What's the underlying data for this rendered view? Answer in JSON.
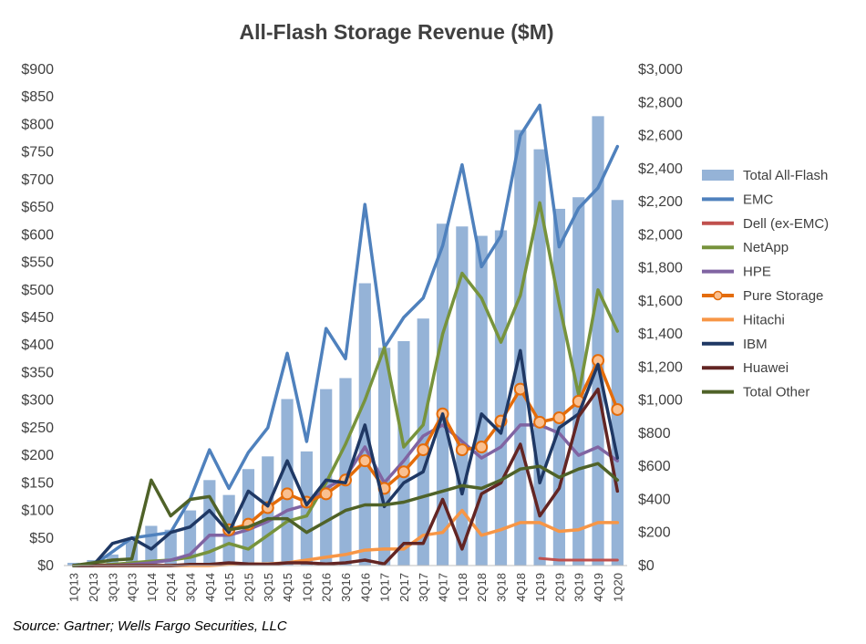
{
  "chart_data": {
    "type": "bar+line",
    "title": "All-Flash Storage Revenue ($M)",
    "source": "Source: Gartner; Wells Fargo Securities, LLC",
    "categories": [
      "1Q13",
      "2Q13",
      "3Q13",
      "4Q13",
      "1Q14",
      "2Q14",
      "3Q14",
      "4Q14",
      "1Q15",
      "2Q15",
      "3Q15",
      "4Q15",
      "1Q16",
      "2Q16",
      "3Q16",
      "4Q16",
      "1Q17",
      "2Q17",
      "3Q17",
      "4Q17",
      "1Q18",
      "2Q18",
      "3Q18",
      "4Q18",
      "1Q19",
      "2Q19",
      "3Q19",
      "4Q19",
      "1Q20"
    ],
    "y_left": {
      "min": 0,
      "max": 900,
      "step": 50,
      "prefix": "$"
    },
    "y_right": {
      "min": 0,
      "max": 3000,
      "step": 200,
      "prefix": "$"
    },
    "legend_position": "right",
    "bar_series": {
      "name": "Total All-Flash",
      "axis": "left",
      "color": "#95B3D7",
      "values": [
        5,
        10,
        20,
        45,
        72,
        65,
        100,
        155,
        128,
        175,
        198,
        302,
        207,
        320,
        340,
        512,
        395,
        407,
        448,
        620,
        615,
        598,
        608,
        790,
        755,
        647,
        668,
        815,
        663
      ]
    },
    "line_series": [
      {
        "name": "EMC",
        "color": "#4F81BD",
        "width": 3.5,
        "markers": false,
        "values": [
          0,
          0,
          25,
          50,
          55,
          60,
          120,
          210,
          140,
          205,
          250,
          385,
          225,
          430,
          375,
          655,
          395,
          450,
          485,
          580,
          727,
          542,
          598,
          780,
          835,
          578,
          648,
          685,
          760
        ]
      },
      {
        "name": "Dell (ex-EMC)",
        "color": "#C0504D",
        "width": 3,
        "markers": false,
        "values": [
          null,
          null,
          null,
          null,
          null,
          null,
          null,
          null,
          null,
          null,
          null,
          null,
          null,
          null,
          null,
          null,
          null,
          null,
          null,
          null,
          null,
          null,
          null,
          null,
          13,
          10,
          10,
          10,
          10
        ]
      },
      {
        "name": "NetApp",
        "color": "#77933C",
        "width": 3.5,
        "markers": false,
        "values": [
          0,
          0,
          2,
          5,
          8,
          10,
          15,
          25,
          40,
          30,
          55,
          80,
          90,
          150,
          220,
          300,
          395,
          215,
          255,
          420,
          530,
          485,
          405,
          490,
          658,
          475,
          310,
          500,
          425
        ]
      },
      {
        "name": "HPE",
        "color": "#8064A2",
        "width": 3.5,
        "markers": false,
        "values": [
          0,
          0,
          0,
          2,
          5,
          10,
          20,
          55,
          55,
          65,
          80,
          100,
          110,
          140,
          160,
          215,
          150,
          190,
          235,
          255,
          225,
          195,
          215,
          255,
          255,
          240,
          200,
          215,
          190
        ]
      },
      {
        "name": "Pure Storage",
        "color": "#E46C0A",
        "width": 3.5,
        "markers": true,
        "values": [
          null,
          null,
          null,
          null,
          null,
          null,
          null,
          null,
          65,
          75,
          105,
          130,
          115,
          130,
          155,
          190,
          140,
          170,
          210,
          275,
          210,
          215,
          262,
          320,
          260,
          268,
          298,
          372,
          283
        ]
      },
      {
        "name": "Hitachi",
        "color": "#F79646",
        "width": 3.5,
        "markers": false,
        "values": [
          0,
          0,
          0,
          0,
          0,
          0,
          0,
          0,
          2,
          3,
          3,
          5,
          10,
          15,
          20,
          28,
          30,
          30,
          55,
          60,
          100,
          55,
          65,
          78,
          78,
          62,
          65,
          78,
          78
        ]
      },
      {
        "name": "IBM",
        "color": "#1F3864",
        "width": 3.5,
        "markers": false,
        "values": [
          0,
          0,
          40,
          50,
          30,
          60,
          70,
          100,
          60,
          135,
          108,
          190,
          110,
          155,
          150,
          255,
          107,
          150,
          170,
          275,
          130,
          275,
          240,
          390,
          150,
          250,
          275,
          365,
          195
        ]
      },
      {
        "name": "Huawei",
        "color": "#632523",
        "width": 3.5,
        "markers": false,
        "values": [
          0,
          0,
          0,
          0,
          0,
          0,
          2,
          2,
          5,
          3,
          2,
          5,
          5,
          3,
          5,
          10,
          3,
          40,
          40,
          120,
          30,
          130,
          150,
          220,
          90,
          140,
          270,
          320,
          135
        ]
      },
      {
        "name": "Total Other",
        "color": "#4F6228",
        "width": 3.5,
        "markers": false,
        "values": [
          0,
          5,
          10,
          12,
          155,
          90,
          120,
          125,
          65,
          70,
          85,
          85,
          60,
          80,
          100,
          110,
          110,
          115,
          125,
          135,
          145,
          140,
          155,
          175,
          180,
          160,
          175,
          185,
          155
        ]
      }
    ]
  }
}
